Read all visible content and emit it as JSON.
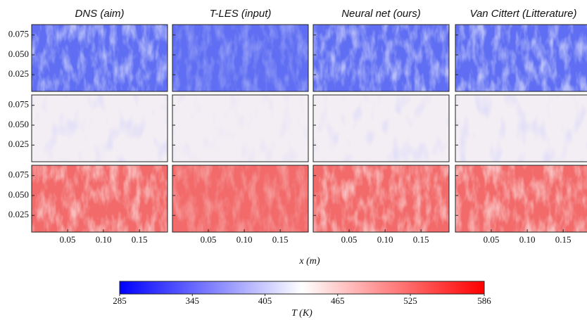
{
  "chart_data": {
    "type": "heatmap",
    "columns": [
      "DNS (aim)",
      "T-LES (input)",
      "Neural net (ours)",
      "Van Cittert (Litterature)"
    ],
    "row_colors": [
      "#5f6ef2",
      "#f3eef3",
      "#f26a6a"
    ],
    "xlabel": "x (m)",
    "xlim": [
      0,
      0.189
    ],
    "xticks": [
      0.05,
      {
        "value": 0.1,
        "label": "0.10"
      },
      0.15
    ],
    "ylim": [
      0.004,
      0.088
    ],
    "yticks": [
      0.025,
      {
        "value": 0.05,
        "label": "0.050"
      },
      0.075
    ],
    "colorbar": {
      "label": "T (K)",
      "lim": [
        285,
        586
      ],
      "ticks": [
        285,
        345,
        405,
        465,
        525,
        586
      ],
      "colors": [
        "#0000ff",
        "#ffffff",
        "#ff0000"
      ]
    }
  }
}
